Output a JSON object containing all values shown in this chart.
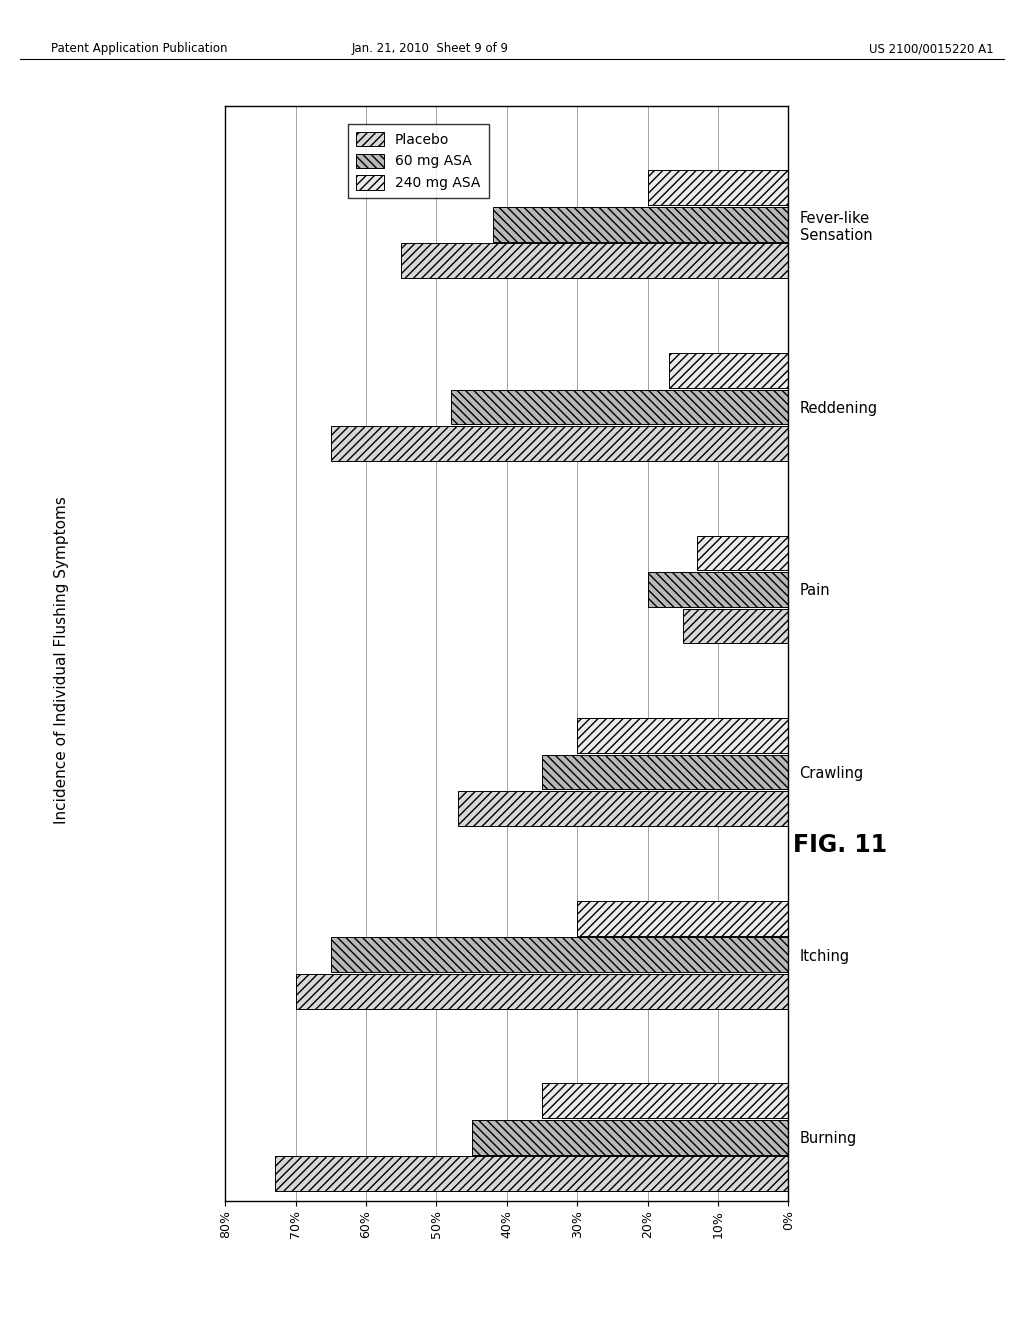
{
  "categories": [
    "Burning",
    "Itching",
    "Crawling",
    "Pain",
    "Reddening",
    "Fever-like\nSensation"
  ],
  "series": {
    "Placebo": [
      0.73,
      0.7,
      0.47,
      0.15,
      0.65,
      0.55
    ],
    "60 mg ASA": [
      0.45,
      0.65,
      0.35,
      0.2,
      0.48,
      0.42
    ],
    "240 mg ASA": [
      0.35,
      0.3,
      0.3,
      0.13,
      0.17,
      0.2
    ]
  },
  "series_order": [
    "Placebo",
    "60 mg ASA",
    "240 mg ASA"
  ],
  "ylabel": "Incidence of Individual Flushing Symptoms",
  "xlim_left": 0.8,
  "xlim_right": 0.0,
  "xticks": [
    0.0,
    0.1,
    0.2,
    0.3,
    0.4,
    0.5,
    0.6,
    0.7,
    0.8
  ],
  "xticklabels": [
    "0%",
    "10%",
    "20%",
    "30%",
    "40%",
    "50%",
    "60%",
    "70%",
    "80%"
  ],
  "fig_title_left": "Patent Application Publication",
  "fig_title_center": "Jan. 21, 2010  Sheet 9 of 9",
  "fig_title_right": "US 2100/0015220 A1",
  "fig_label": "FIG. 11",
  "background_color": "#ffffff",
  "hatch_placebo": "////",
  "hatch_60": "\\\\\\\\",
  "hatch_240": "////",
  "color_placebo": "#d8d8d8",
  "color_60": "#b8b8b8",
  "color_240": "#ececec"
}
